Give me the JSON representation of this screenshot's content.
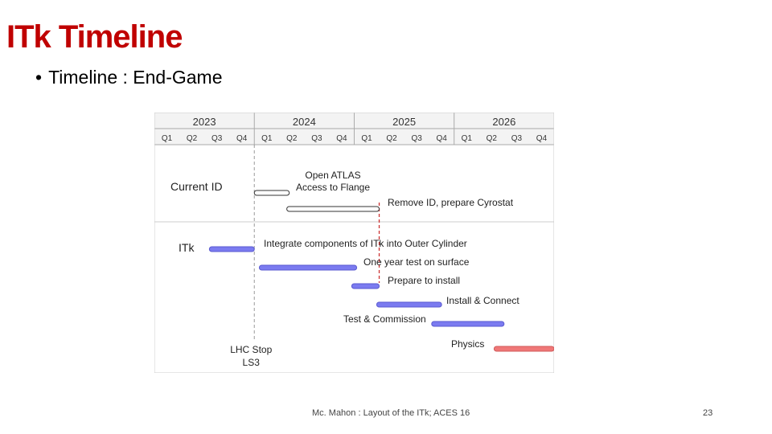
{
  "slide": {
    "title": "ITk Timeline",
    "bullet": "Timeline : End-Game"
  },
  "timeline": {
    "years": [
      "2023",
      "2024",
      "2025",
      "2026"
    ],
    "quarters": [
      "Q1",
      "Q2",
      "Q3",
      "Q4",
      "Q1",
      "Q2",
      "Q3",
      "Q4",
      "Q1",
      "Q2",
      "Q3",
      "Q4",
      "Q1",
      "Q2",
      "Q3",
      "Q4"
    ],
    "sections": [
      "Current ID",
      "ITk"
    ],
    "tasks": [
      {
        "label": "Open ATLAS",
        "label2": "Access to Flange",
        "start": 4.0,
        "end": 5.4,
        "row": 0,
        "color": "#ffffff",
        "outline": "#333333"
      },
      {
        "label": "Remove ID, prepare Cyrostat",
        "start": 5.3,
        "end": 9.0,
        "row": 1,
        "color": "#ffffff",
        "outline": "#333333"
      },
      {
        "label": "Integrate components of ITk into Outer Cylinder",
        "start": 2.2,
        "end": 4.0,
        "row": 2,
        "color": "#7b7bf0",
        "outline": "#5a5ad0"
      },
      {
        "label": "One year test on surface",
        "start": 4.2,
        "end": 8.1,
        "row": 3,
        "color": "#7b7bf0",
        "outline": "#5a5ad0"
      },
      {
        "label": "Prepare to install",
        "start": 7.9,
        "end": 9.0,
        "row": 4,
        "color": "#7b7bf0",
        "outline": "#5a5ad0"
      },
      {
        "label": "Install & Connect",
        "start": 8.9,
        "end": 11.5,
        "row": 5,
        "color": "#7b7bf0",
        "outline": "#5a5ad0"
      },
      {
        "label": "Test & Commission",
        "start": 11.1,
        "end": 14.0,
        "row": 6,
        "color": "#7b7bf0",
        "outline": "#5a5ad0"
      },
      {
        "label": "Physics",
        "start": 13.6,
        "end": 16.0,
        "row": 7,
        "color": "#f07878",
        "outline": "#d05a5a"
      }
    ],
    "milestones": [
      {
        "label": "LHC Stop",
        "label2": "LS3",
        "at": 4.0
      }
    ],
    "marker_at": 9.0
  },
  "footer": {
    "center": "Mc. Mahon : Layout of the ITk; ACES 16",
    "page": "23"
  }
}
